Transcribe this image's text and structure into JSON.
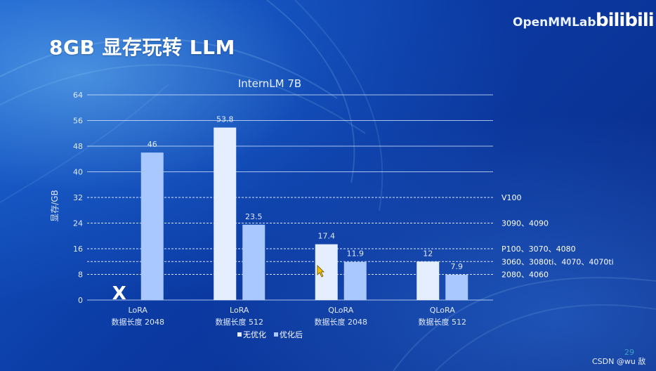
{
  "slide": {
    "title": "8GB 显存玩转 LLM",
    "brand": "OpenMMLab",
    "bilibili": "bilibili",
    "page_number": "29",
    "watermark": "CSDN @wu 敌"
  },
  "chart_data": {
    "type": "bar",
    "title": "InternLM 7B",
    "ylabel": "显存/GB",
    "ylim": [
      0,
      64
    ],
    "yticks": [
      0,
      8,
      16,
      24,
      32,
      40,
      48,
      56,
      64
    ],
    "categories": [
      [
        "LoRA",
        "数据长度 2048"
      ],
      [
        "LoRA",
        "数据长度 512"
      ],
      [
        "QLoRA",
        "数据长度 2048"
      ],
      [
        "QLoRA",
        "数据长度 512"
      ]
    ],
    "series": [
      {
        "name": "无优化",
        "values": [
          null,
          53.8,
          17.4,
          12
        ],
        "labels": [
          "",
          "53.8",
          "17.4",
          "12"
        ],
        "color": "#e4eeff"
      },
      {
        "name": "优化后",
        "values": [
          46,
          23.5,
          11.9,
          7.9
        ],
        "labels": [
          "46",
          "23.5",
          "11.9",
          "7.9"
        ],
        "color": "#a8c8ff"
      }
    ],
    "missing_marker": {
      "category_index": 0,
      "series_index": 0,
      "symbol": "X"
    },
    "reference_lines": [
      {
        "value": 32,
        "label": "V100"
      },
      {
        "value": 24,
        "label": "3090、4090"
      },
      {
        "value": 16,
        "label": "P100、3070、4080"
      },
      {
        "value": 12,
        "label": "3060、3080ti、4070、4070ti"
      },
      {
        "value": 8,
        "label": "2080、4060"
      }
    ],
    "legend_position": "bottom",
    "grid": true
  }
}
